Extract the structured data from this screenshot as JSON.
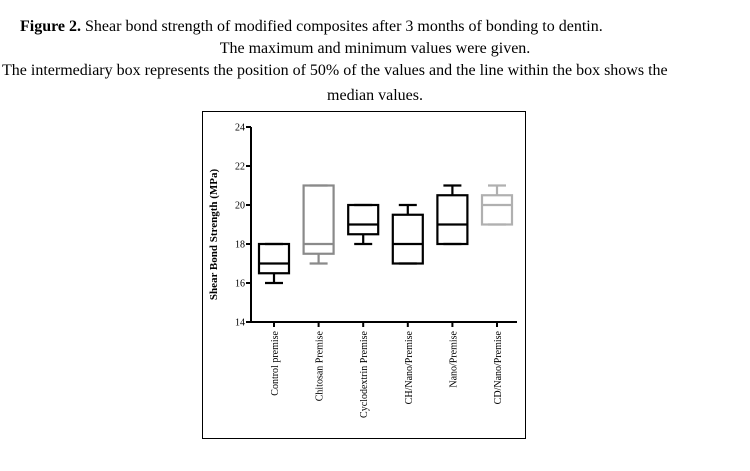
{
  "caption": {
    "line1_prefix": "Figure 2.",
    "line1_text": "Shear bond strength of modified composites after 3 months of bonding to dentin.",
    "line2": "The maximum and minimum values were given.",
    "line3": "The intermediary box represents the position of 50% of the values and the line within the box shows the",
    "line4": "median values."
  },
  "chart_data": {
    "type": "box",
    "title": "",
    "xlabel": "",
    "ylabel": "Shear Bond Strength (MPa)",
    "ylim": [
      14,
      24
    ],
    "yticks": [
      14,
      16,
      18,
      20,
      22,
      24
    ],
    "grid": false,
    "categories": [
      "Control premise",
      "Chitosan Premise",
      "Cyclodextrin Premise",
      "CH/Nano/Premise",
      "Nano/Premise",
      "CD/Nano/Premise"
    ],
    "boxes": [
      {
        "min": 16,
        "q1": 16.5,
        "median": 17,
        "q3": 18,
        "max": 18,
        "color": "#000000"
      },
      {
        "min": 17,
        "q1": 17.5,
        "median": 18,
        "q3": 21,
        "max": 21,
        "color": "#8a8a8a"
      },
      {
        "min": 18,
        "q1": 18.5,
        "median": 19,
        "q3": 20,
        "max": 20,
        "color": "#000000"
      },
      {
        "min": 17,
        "q1": 17,
        "median": 18,
        "q3": 19.5,
        "max": 20,
        "color": "#000000"
      },
      {
        "min": 18,
        "q1": 18,
        "median": 19,
        "q3": 20.5,
        "max": 21,
        "color": "#000000"
      },
      {
        "min": 19,
        "q1": 19,
        "median": 20,
        "q3": 20.5,
        "max": 21,
        "color": "#b0b0b0"
      }
    ]
  }
}
